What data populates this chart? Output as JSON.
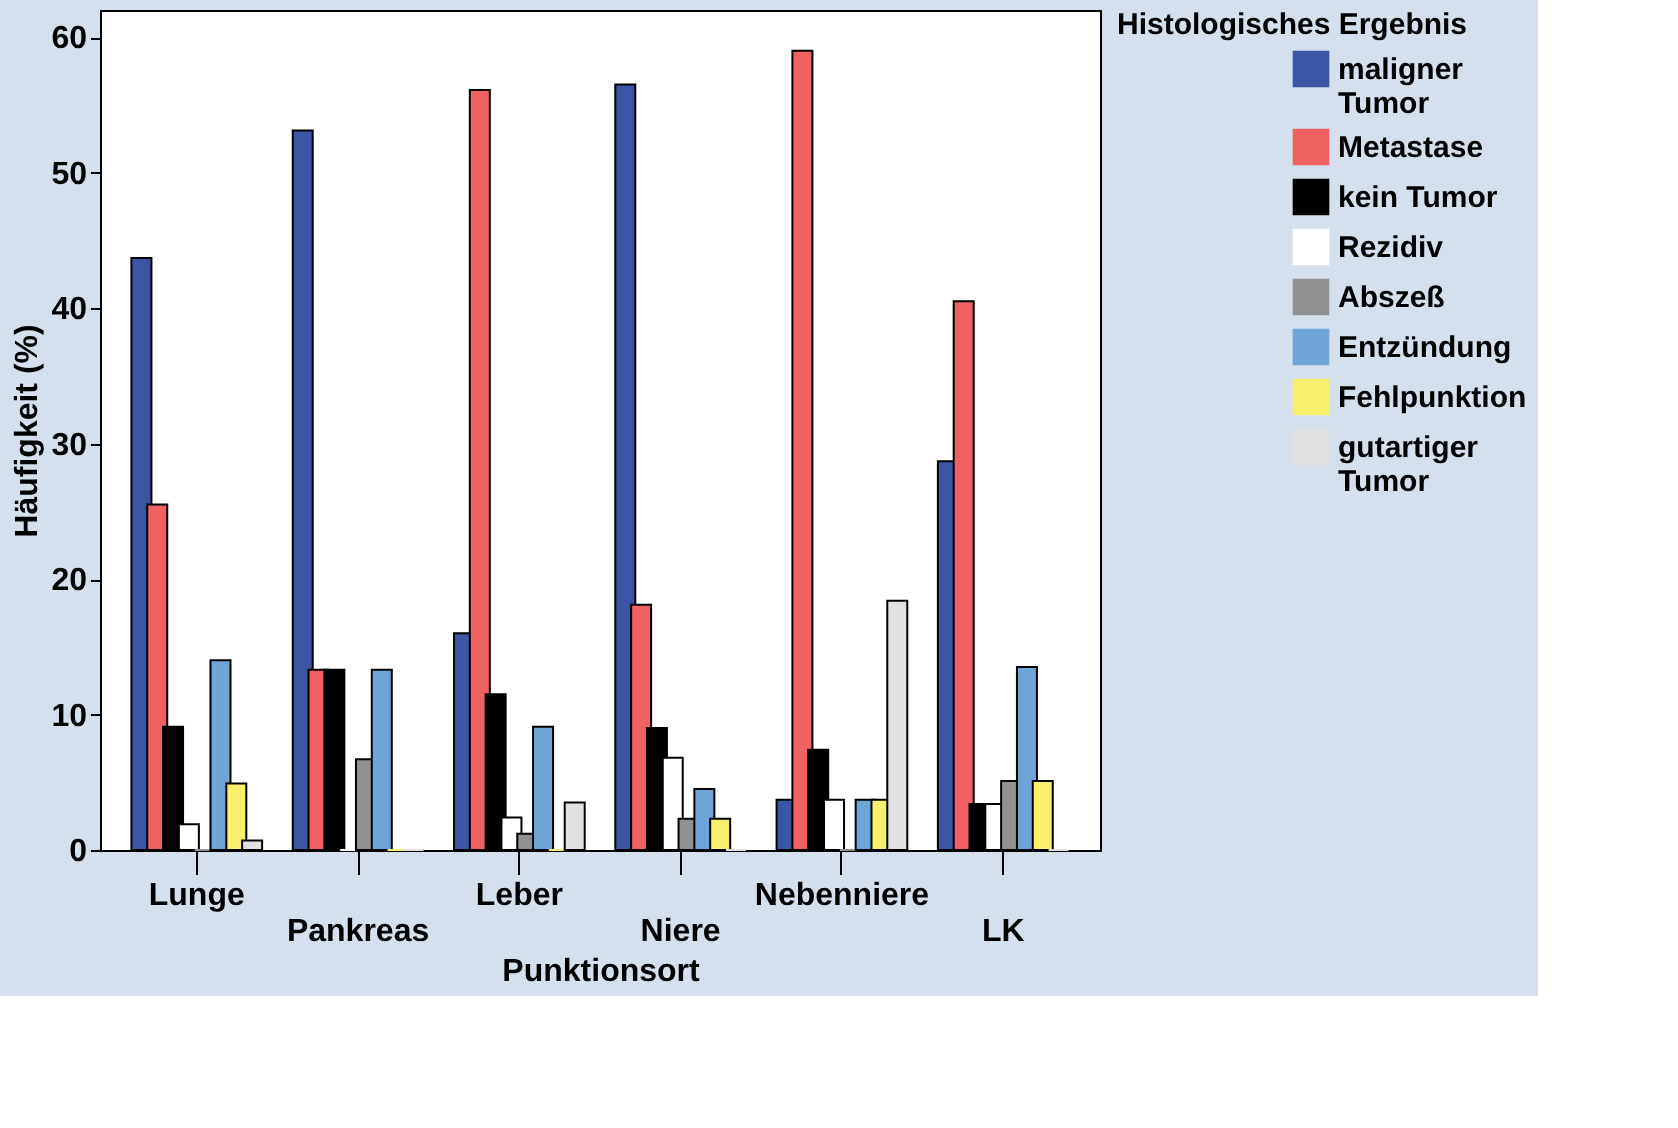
{
  "chart_data": {
    "type": "bar",
    "xlabel": "Punktionsort",
    "ylabel": "Häufigkeit (%)",
    "legend_title": "Histologisches Ergebnis",
    "categories": [
      "Lunge",
      "Pankreas",
      "Leber",
      "Niere",
      "Nebenniere",
      "LK"
    ],
    "series": [
      {
        "name": "maligner Tumor",
        "color": "#3d55a5",
        "values": [
          43.7,
          53.1,
          16.0,
          56.5,
          3.7,
          28.7
        ]
      },
      {
        "name": "Metastase",
        "color": "#f06262",
        "values": [
          25.5,
          13.3,
          56.1,
          18.1,
          59.0,
          40.5
        ]
      },
      {
        "name": "kein Tumor",
        "color": "#000000",
        "values": [
          9.1,
          13.3,
          11.5,
          9.0,
          7.4,
          3.4
        ]
      },
      {
        "name": "Rezidiv",
        "color": "#ffffff",
        "values": [
          1.9,
          0,
          2.4,
          6.8,
          3.7,
          3.4
        ]
      },
      {
        "name": "Abszeß",
        "color": "#919191",
        "values": [
          0,
          6.7,
          1.2,
          2.3,
          0,
          5.1
        ]
      },
      {
        "name": "Entzündung",
        "color": "#70a5d8",
        "values": [
          14.0,
          13.3,
          9.1,
          4.5,
          3.7,
          13.5
        ]
      },
      {
        "name": "Fehlpunktion",
        "color": "#f8f06c",
        "values": [
          4.9,
          0,
          0,
          2.3,
          3.7,
          5.1
        ]
      },
      {
        "name": "gutartiger Tumor",
        "color": "#e1e1e1",
        "values": [
          0.7,
          0,
          3.5,
          0,
          18.4,
          0
        ]
      }
    ],
    "ylim": [
      0,
      62
    ],
    "yticks": [
      0,
      10,
      20,
      30,
      40,
      50,
      60
    ],
    "grid": false,
    "legend": "right"
  }
}
